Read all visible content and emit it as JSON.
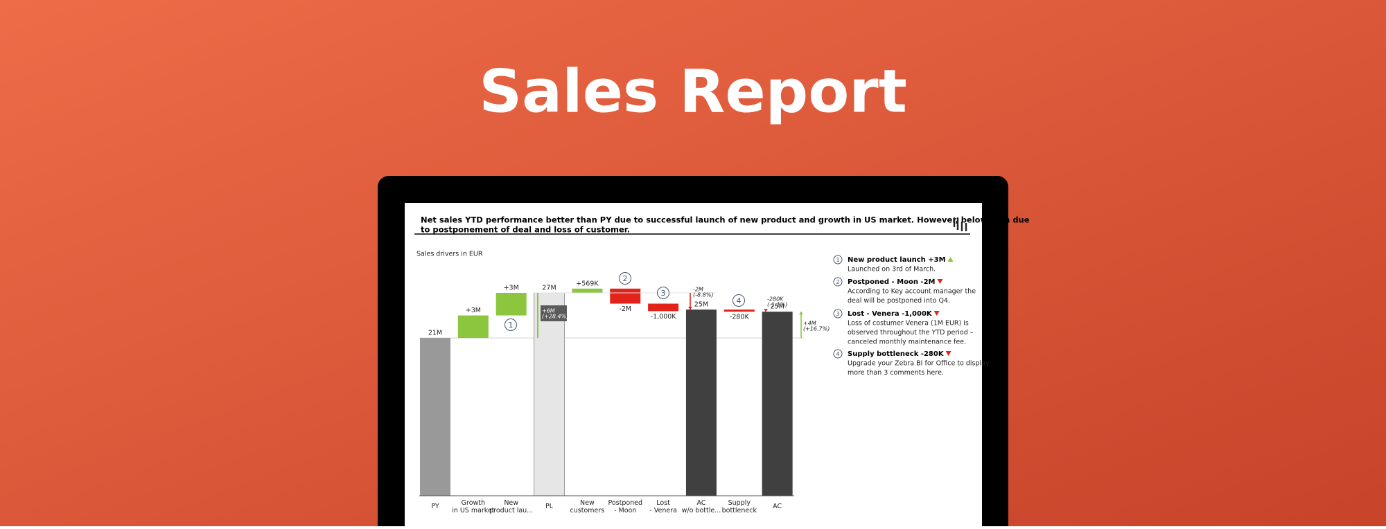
{
  "header": {
    "title": "Sales Report"
  },
  "report": {
    "headline": [
      "Net sales YTD performance better than PY due to successful launch of new product and growth in US market. However, below plan due",
      "to postponement of deal and loss of customer."
    ]
  },
  "chart_data": {
    "type": "waterfall",
    "subtitle": "Sales drivers in EUR",
    "categories": [
      "PY",
      "Growth\nin US market",
      "New\nproduct lau...",
      "PL",
      "New\ncustomers",
      "Postponed\n- Moon",
      "Lost\n- Venera",
      "AC\nw/o bottle...",
      "Supply\nbottleneck",
      "AC"
    ],
    "values": [
      21,
      3,
      3,
      27,
      0.569,
      -2,
      -1,
      24.78,
      -0.28,
      24.5
    ],
    "value_labels": [
      "21M",
      "+3M",
      "+3M",
      "27M",
      "+569K",
      "-2M",
      "-1,000K",
      "25M",
      "-280K",
      "25M"
    ],
    "measure": [
      "total",
      "delta",
      "delta",
      "total",
      "delta",
      "delta",
      "delta",
      "total",
      "delta",
      "total"
    ],
    "colors": {
      "py": "#999999",
      "plan": "#e6e6e6",
      "actual": "#404040",
      "positive": "#8cc63f",
      "negative": "#e2231a"
    },
    "variances": [
      [
        "-2M",
        "(-8.8%)"
      ],
      [
        "-280K",
        "(-1.1%)"
      ],
      [
        "+4M",
        "(+16.7%)"
      ],
      [
        "+6M",
        "(+28.4%)"
      ]
    ],
    "markers": [
      "1",
      "2",
      "3",
      "4"
    ],
    "comments": [
      {
        "number": "1",
        "title": "New product launch +3M",
        "body": [
          "Launched on 3rd of March."
        ]
      },
      {
        "number": "2",
        "title": "Postponed - Moon -2M",
        "body": [
          "According to Key account manager the",
          "deal will be postponed into Q4."
        ]
      },
      {
        "number": "3",
        "title": "Lost - Venera -1,000K",
        "body": [
          "Loss of costumer Venera (1M EUR) is",
          "observed throughout the YTD period –",
          "canceled monthly maintenance fee."
        ]
      },
      {
        "number": "4",
        "title": "Supply bottleneck -280K",
        "body": [
          "Upgrade your Zebra BI for Office to display",
          "more than 3 comments here."
        ]
      }
    ]
  }
}
